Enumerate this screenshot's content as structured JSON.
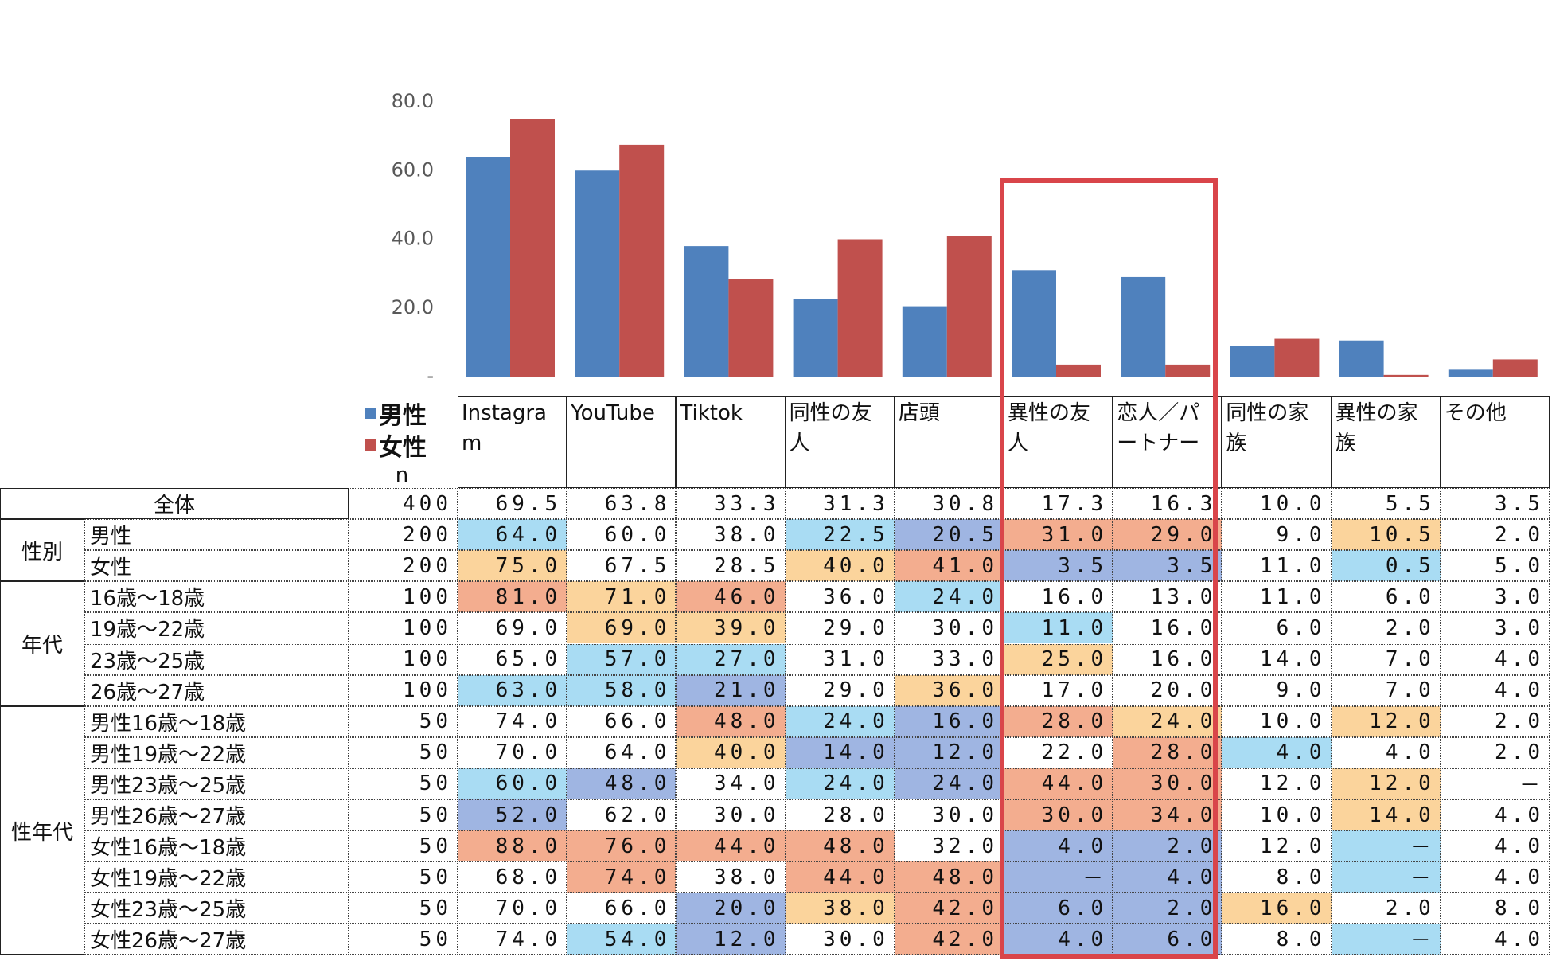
{
  "chart_data": {
    "type": "bar",
    "categories": [
      "Instagram",
      "YouTube",
      "Tiktok",
      "同性の友人",
      "店頭",
      "異性の友人",
      "恋人／パートナー",
      "同性の家族",
      "異性の家族",
      "その他"
    ],
    "series": [
      {
        "name": "男性",
        "color": "#4f81bd",
        "values": [
          64.0,
          60.0,
          38.0,
          22.5,
          20.5,
          31.0,
          29.0,
          9.0,
          10.5,
          2.0
        ]
      },
      {
        "name": "女性",
        "color": "#c0504d",
        "values": [
          75.0,
          67.5,
          28.5,
          40.0,
          41.0,
          3.5,
          3.5,
          11.0,
          0.5,
          5.0
        ]
      }
    ],
    "ylim": [
      0,
      80
    ],
    "yticks": [
      {
        "value": 0,
        "label": "-"
      },
      {
        "value": 20,
        "label": "20.0"
      },
      {
        "value": 40,
        "label": "40.0"
      },
      {
        "value": 60,
        "label": "60.0"
      },
      {
        "value": 80,
        "label": "80.0"
      }
    ]
  },
  "table": {
    "n_label": "n",
    "total": {
      "label": "全体",
      "n": 400,
      "cells": [
        "69.5",
        "63.8",
        "33.3",
        "31.3",
        "30.8",
        "17.3",
        "16.3",
        "10.0",
        "5.5",
        "3.5"
      ],
      "colors": [
        null,
        null,
        null,
        null,
        null,
        null,
        null,
        null,
        null,
        null
      ]
    },
    "groups": [
      {
        "label": "性別",
        "rows": [
          {
            "label": "男性",
            "n": 200,
            "cells": [
              "64.0",
              "60.0",
              "38.0",
              "22.5",
              "20.5",
              "31.0",
              "29.0",
              "9.0",
              "10.5",
              "2.0"
            ],
            "colors": [
              "#a9dcf3",
              null,
              null,
              "#a9dcf3",
              "#9fb5e2",
              "#f3ad8f",
              "#f3ad8f",
              null,
              "#fbd49c",
              null
            ]
          },
          {
            "label": "女性",
            "n": 200,
            "cells": [
              "75.0",
              "67.5",
              "28.5",
              "40.0",
              "41.0",
              "3.5",
              "3.5",
              "11.0",
              "0.5",
              "5.0"
            ],
            "colors": [
              "#fbd49c",
              null,
              null,
              "#fbd49c",
              "#f3ad8f",
              "#9fb5e2",
              "#9fb5e2",
              null,
              "#a9dcf3",
              null
            ]
          }
        ]
      },
      {
        "label": "年代",
        "rows": [
          {
            "label": "16歳～18歳",
            "n": 100,
            "cells": [
              "81.0",
              "71.0",
              "46.0",
              "36.0",
              "24.0",
              "16.0",
              "13.0",
              "11.0",
              "6.0",
              "3.0"
            ],
            "colors": [
              "#f3ad8f",
              "#fbd49c",
              "#f3ad8f",
              null,
              "#a9dcf3",
              null,
              null,
              null,
              null,
              null
            ]
          },
          {
            "label": "19歳～22歳",
            "n": 100,
            "cells": [
              "69.0",
              "69.0",
              "39.0",
              "29.0",
              "30.0",
              "11.0",
              "16.0",
              "6.0",
              "2.0",
              "3.0"
            ],
            "colors": [
              null,
              "#fbd49c",
              "#fbd49c",
              null,
              null,
              "#a9dcf3",
              null,
              null,
              null,
              null
            ]
          },
          {
            "label": "23歳～25歳",
            "n": 100,
            "cells": [
              "65.0",
              "57.0",
              "27.0",
              "31.0",
              "33.0",
              "25.0",
              "16.0",
              "14.0",
              "7.0",
              "4.0"
            ],
            "colors": [
              null,
              "#a9dcf3",
              "#a9dcf3",
              null,
              null,
              "#fbd49c",
              null,
              null,
              null,
              null
            ]
          },
          {
            "label": "26歳～27歳",
            "n": 100,
            "cells": [
              "63.0",
              "58.0",
              "21.0",
              "29.0",
              "36.0",
              "17.0",
              "20.0",
              "9.0",
              "7.0",
              "4.0"
            ],
            "colors": [
              "#a9dcf3",
              "#a9dcf3",
              "#9fb5e2",
              null,
              "#fbd49c",
              null,
              null,
              null,
              null,
              null
            ]
          }
        ]
      },
      {
        "label": "性年代",
        "rows": [
          {
            "label": "男性16歳～18歳",
            "n": 50,
            "cells": [
              "74.0",
              "66.0",
              "48.0",
              "24.0",
              "16.0",
              "28.0",
              "24.0",
              "10.0",
              "12.0",
              "2.0"
            ],
            "colors": [
              null,
              null,
              "#f3ad8f",
              "#a9dcf3",
              "#9fb5e2",
              "#f3ad8f",
              "#fbd49c",
              null,
              "#fbd49c",
              null
            ]
          },
          {
            "label": "男性19歳～22歳",
            "n": 50,
            "cells": [
              "70.0",
              "64.0",
              "40.0",
              "14.0",
              "12.0",
              "22.0",
              "28.0",
              "4.0",
              "4.0",
              "2.0"
            ],
            "colors": [
              null,
              null,
              "#fbd49c",
              "#9fb5e2",
              "#9fb5e2",
              null,
              "#f3ad8f",
              "#a9dcf3",
              null,
              null
            ]
          },
          {
            "label": "男性23歳～25歳",
            "n": 50,
            "cells": [
              "60.0",
              "48.0",
              "34.0",
              "24.0",
              "24.0",
              "44.0",
              "30.0",
              "12.0",
              "12.0",
              "－"
            ],
            "colors": [
              "#a9dcf3",
              "#9fb5e2",
              null,
              "#a9dcf3",
              "#9fb5e2",
              "#f3ad8f",
              "#f3ad8f",
              null,
              "#fbd49c",
              null
            ]
          },
          {
            "label": "男性26歳～27歳",
            "n": 50,
            "cells": [
              "52.0",
              "62.0",
              "30.0",
              "28.0",
              "30.0",
              "30.0",
              "34.0",
              "10.0",
              "14.0",
              "4.0"
            ],
            "colors": [
              "#9fb5e2",
              null,
              null,
              null,
              null,
              "#f3ad8f",
              "#f3ad8f",
              null,
              "#fbd49c",
              null
            ]
          },
          {
            "label": "女性16歳～18歳",
            "n": 50,
            "cells": [
              "88.0",
              "76.0",
              "44.0",
              "48.0",
              "32.0",
              "4.0",
              "2.0",
              "12.0",
              "－",
              "4.0"
            ],
            "colors": [
              "#f3ad8f",
              "#f3ad8f",
              "#f3ad8f",
              "#f3ad8f",
              null,
              "#9fb5e2",
              "#9fb5e2",
              null,
              "#a9dcf3",
              null
            ]
          },
          {
            "label": "女性19歳～22歳",
            "n": 50,
            "cells": [
              "68.0",
              "74.0",
              "38.0",
              "44.0",
              "48.0",
              "－",
              "4.0",
              "8.0",
              "－",
              "4.0"
            ],
            "colors": [
              null,
              "#f3ad8f",
              null,
              "#f3ad8f",
              "#f3ad8f",
              "#9fb5e2",
              "#9fb5e2",
              null,
              "#a9dcf3",
              null
            ]
          },
          {
            "label": "女性23歳～25歳",
            "n": 50,
            "cells": [
              "70.0",
              "66.0",
              "20.0",
              "38.0",
              "42.0",
              "6.0",
              "2.0",
              "16.0",
              "2.0",
              "8.0"
            ],
            "colors": [
              null,
              null,
              "#9fb5e2",
              "#fbd49c",
              "#f3ad8f",
              "#9fb5e2",
              "#9fb5e2",
              "#fbd49c",
              null,
              null
            ]
          },
          {
            "label": "女性26歳～27歳",
            "n": 50,
            "cells": [
              "74.0",
              "54.0",
              "12.0",
              "30.0",
              "42.0",
              "4.0",
              "6.0",
              "8.0",
              "－",
              "4.0"
            ],
            "colors": [
              null,
              "#a9dcf3",
              "#9fb5e2",
              null,
              "#f3ad8f",
              "#9fb5e2",
              "#9fb5e2",
              null,
              "#a9dcf3",
              null
            ]
          }
        ]
      }
    ]
  }
}
